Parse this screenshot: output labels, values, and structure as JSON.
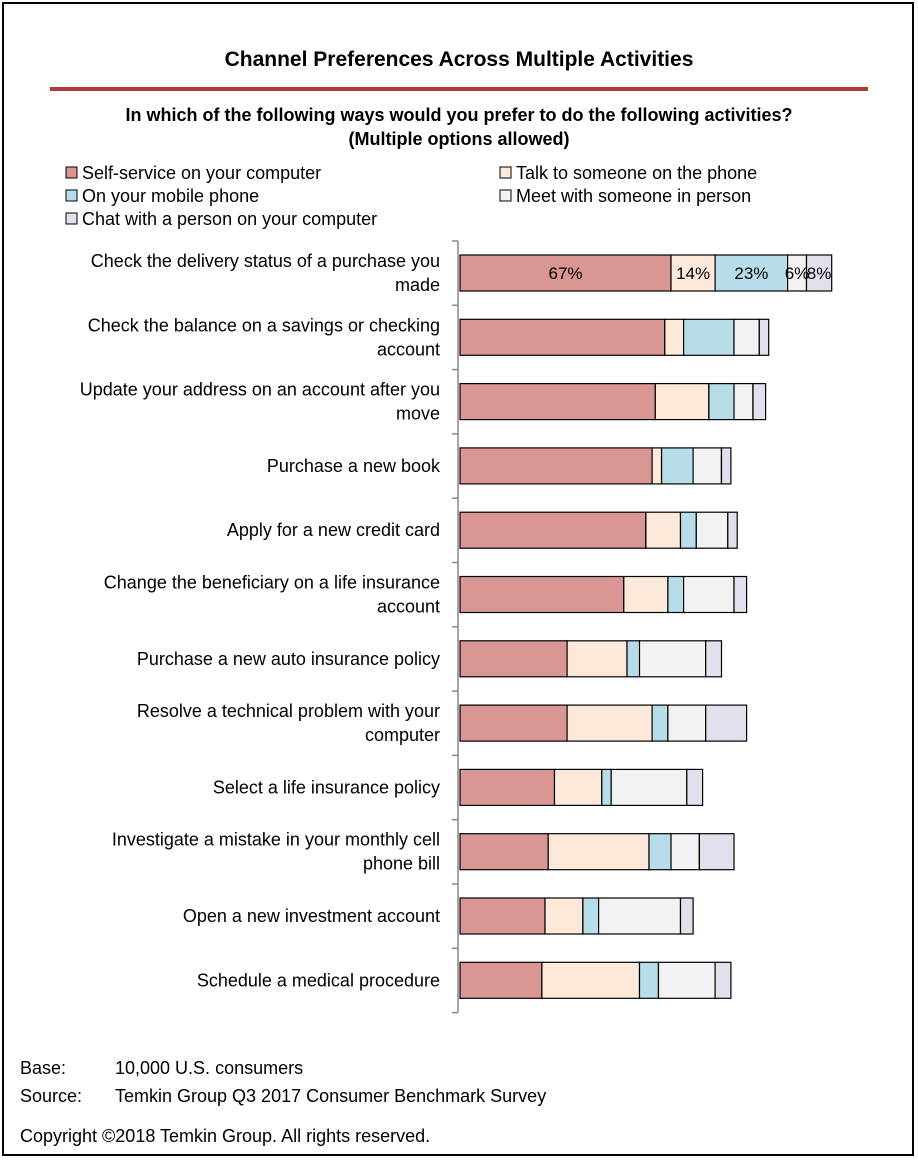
{
  "chart_data": {
    "type": "bar",
    "orientation": "horizontal",
    "stacked": true,
    "title": "Channel Preferences Across Multiple Activities",
    "subtitle": "In which of the following ways would you prefer to do the following activities? (Multiple options allowed)",
    "subtitle_lines": [
      "In which of the following ways would you prefer to do the following activities?",
      "(Multiple options allowed)"
    ],
    "legend_position": "top",
    "categories": [
      [
        "Check the delivery status of a purchase you",
        "made"
      ],
      [
        "Check the balance on a savings or checking",
        "account"
      ],
      [
        "Update your address on an account after you",
        "move"
      ],
      [
        "Purchase a new book"
      ],
      [
        "Apply for a new credit card"
      ],
      [
        "Change the beneficiary on a life insurance",
        "account"
      ],
      [
        "Purchase a new auto insurance policy"
      ],
      [
        "Resolve a technical problem with your",
        "computer"
      ],
      [
        "Select a life insurance policy"
      ],
      [
        "Investigate a mistake in your monthly cell",
        "phone bill"
      ],
      [
        "Open a new investment account"
      ],
      [
        "Schedule a medical procedure"
      ]
    ],
    "series": [
      {
        "name": "Self-service on your computer",
        "color": "#d99694",
        "values": [
          67,
          65,
          62,
          61,
          59,
          52,
          34,
          34,
          30,
          28,
          27,
          26
        ]
      },
      {
        "name": "Talk to someone on the phone",
        "color": "#fde9d9",
        "values": [
          14,
          6,
          17,
          3,
          11,
          14,
          19,
          27,
          15,
          32,
          12,
          31
        ]
      },
      {
        "name": "On your mobile phone",
        "color": "#b7dee8",
        "values": [
          23,
          16,
          8,
          10,
          5,
          5,
          4,
          5,
          3,
          7,
          5,
          6
        ]
      },
      {
        "name": "Meet with someone in person",
        "color": "#f2f2f2",
        "values": [
          6,
          8,
          6,
          9,
          10,
          16,
          21,
          12,
          24,
          9,
          26,
          18
        ]
      },
      {
        "name": "Chat with a person on your computer",
        "color": "#e4dfec",
        "values": [
          8,
          3,
          4,
          3,
          3,
          4,
          5,
          13,
          5,
          11,
          4,
          5
        ]
      }
    ],
    "legend_order": [
      0,
      1,
      2,
      3,
      4
    ],
    "data_labels": [
      {
        "row": 0,
        "series": 0,
        "text": "67%"
      },
      {
        "row": 0,
        "series": 1,
        "text": "14%"
      },
      {
        "row": 0,
        "series": 2,
        "text": "23%"
      },
      {
        "row": 0,
        "series": 3,
        "text": "6%"
      },
      {
        "row": 0,
        "series": 4,
        "text": "8%"
      }
    ],
    "grid": false
  },
  "footer": {
    "base_label": "Base:",
    "base_value": "10,000 U.S. consumers",
    "source_label": "Source:",
    "source_value": "Temkin Group Q3 2017 Consumer Benchmark Survey",
    "copyright": "Copyright ©2018 Temkin Group. All rights reserved."
  }
}
